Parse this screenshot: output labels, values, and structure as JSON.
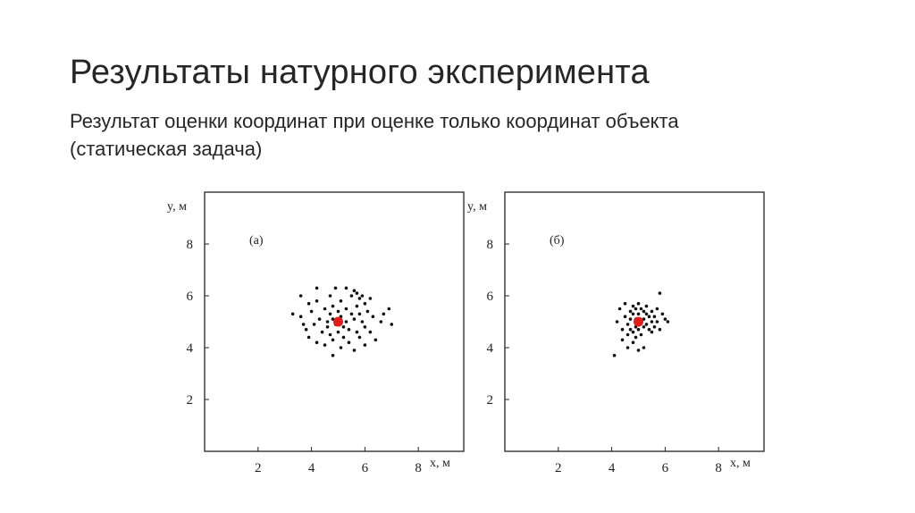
{
  "slide": {
    "title": "Результаты натурного эксперимента",
    "subtitle_line1": "Результат оценки координат при оценке только координат объекта",
    "subtitle_line2": "(статическая задача)"
  },
  "colors": {
    "points": "#111111",
    "target": "#e31b1b",
    "axes": "#222222"
  },
  "chart_data": [
    {
      "type": "scatter",
      "annotation": "(а)",
      "xlabel": "x, м",
      "ylabel": "y, м",
      "xlim": [
        0,
        9.7
      ],
      "ylim": [
        0,
        10
      ],
      "xticks": [
        2,
        4,
        6,
        8
      ],
      "yticks": [
        2,
        4,
        6,
        8
      ],
      "grid": false,
      "target": {
        "x": 5.0,
        "y": 5.0
      },
      "points": [
        [
          3.3,
          5.3
        ],
        [
          3.6,
          6.0
        ],
        [
          3.6,
          5.2
        ],
        [
          3.7,
          4.9
        ],
        [
          3.8,
          4.7
        ],
        [
          3.9,
          5.7
        ],
        [
          3.9,
          4.4
        ],
        [
          4.0,
          5.4
        ],
        [
          4.1,
          4.9
        ],
        [
          4.2,
          6.3
        ],
        [
          4.2,
          5.8
        ],
        [
          4.2,
          4.2
        ],
        [
          4.3,
          5.1
        ],
        [
          4.4,
          4.6
        ],
        [
          4.5,
          5.5
        ],
        [
          4.5,
          4.1
        ],
        [
          4.6,
          5.0
        ],
        [
          4.6,
          4.8
        ],
        [
          4.7,
          6.0
        ],
        [
          4.7,
          5.3
        ],
        [
          4.7,
          4.5
        ],
        [
          4.8,
          5.6
        ],
        [
          4.8,
          5.1
        ],
        [
          4.8,
          4.3
        ],
        [
          4.8,
          3.7
        ],
        [
          4.9,
          6.3
        ],
        [
          4.9,
          4.9
        ],
        [
          5.0,
          5.4
        ],
        [
          5.0,
          4.6
        ],
        [
          5.1,
          5.8
        ],
        [
          5.1,
          5.2
        ],
        [
          5.1,
          4.0
        ],
        [
          5.2,
          4.8
        ],
        [
          5.2,
          4.4
        ],
        [
          5.3,
          6.3
        ],
        [
          5.3,
          5.5
        ],
        [
          5.3,
          5.0
        ],
        [
          5.4,
          4.7
        ],
        [
          5.4,
          4.2
        ],
        [
          5.5,
          6.0
        ],
        [
          5.5,
          5.3
        ],
        [
          5.6,
          6.2
        ],
        [
          5.6,
          5.1
        ],
        [
          5.6,
          3.9
        ],
        [
          5.7,
          6.1
        ],
        [
          5.7,
          5.6
        ],
        [
          5.7,
          4.6
        ],
        [
          5.8,
          5.9
        ],
        [
          5.8,
          5.3
        ],
        [
          5.8,
          4.4
        ],
        [
          5.9,
          6.0
        ],
        [
          5.9,
          5.0
        ],
        [
          6.0,
          5.7
        ],
        [
          6.0,
          4.8
        ],
        [
          6.0,
          4.1
        ],
        [
          6.1,
          5.4
        ],
        [
          6.2,
          5.9
        ],
        [
          6.2,
          4.6
        ],
        [
          6.3,
          5.2
        ],
        [
          6.4,
          4.3
        ],
        [
          6.6,
          5.0
        ],
        [
          6.7,
          5.3
        ],
        [
          6.9,
          5.5
        ],
        [
          7.0,
          4.9
        ]
      ]
    },
    {
      "type": "scatter",
      "annotation": "(б)",
      "xlabel": "x, м",
      "ylabel": "y, м",
      "xlim": [
        0,
        9.7
      ],
      "ylim": [
        0,
        10
      ],
      "xticks": [
        2,
        4,
        6,
        8
      ],
      "yticks": [
        2,
        4,
        6,
        8
      ],
      "grid": false,
      "target": {
        "x": 5.0,
        "y": 5.0
      },
      "points": [
        [
          4.1,
          3.7
        ],
        [
          4.2,
          5.0
        ],
        [
          4.3,
          5.5
        ],
        [
          4.4,
          4.7
        ],
        [
          4.4,
          4.3
        ],
        [
          4.5,
          5.2
        ],
        [
          4.5,
          5.7
        ],
        [
          4.6,
          4.9
        ],
        [
          4.6,
          4.5
        ],
        [
          4.6,
          4.0
        ],
        [
          4.7,
          5.4
        ],
        [
          4.7,
          5.1
        ],
        [
          4.7,
          4.7
        ],
        [
          4.8,
          5.6
        ],
        [
          4.8,
          5.3
        ],
        [
          4.8,
          4.6
        ],
        [
          4.8,
          4.2
        ],
        [
          4.9,
          5.5
        ],
        [
          4.9,
          5.1
        ],
        [
          4.9,
          4.8
        ],
        [
          4.9,
          4.4
        ],
        [
          5.0,
          5.7
        ],
        [
          5.0,
          5.3
        ],
        [
          5.0,
          4.7
        ],
        [
          5.0,
          3.9
        ],
        [
          5.1,
          5.5
        ],
        [
          5.1,
          5.0
        ],
        [
          5.1,
          4.5
        ],
        [
          5.2,
          5.4
        ],
        [
          5.2,
          5.1
        ],
        [
          5.2,
          4.8
        ],
        [
          5.2,
          4.0
        ],
        [
          5.3,
          5.6
        ],
        [
          5.3,
          5.3
        ],
        [
          5.3,
          4.9
        ],
        [
          5.4,
          5.2
        ],
        [
          5.4,
          4.7
        ],
        [
          5.5,
          5.4
        ],
        [
          5.5,
          5.0
        ],
        [
          5.5,
          4.6
        ],
        [
          5.6,
          5.2
        ],
        [
          5.6,
          4.8
        ],
        [
          5.7,
          5.5
        ],
        [
          5.7,
          5.0
        ],
        [
          5.8,
          4.7
        ],
        [
          5.8,
          6.1
        ],
        [
          5.9,
          5.3
        ],
        [
          6.0,
          5.1
        ],
        [
          6.1,
          5.0
        ]
      ]
    }
  ]
}
